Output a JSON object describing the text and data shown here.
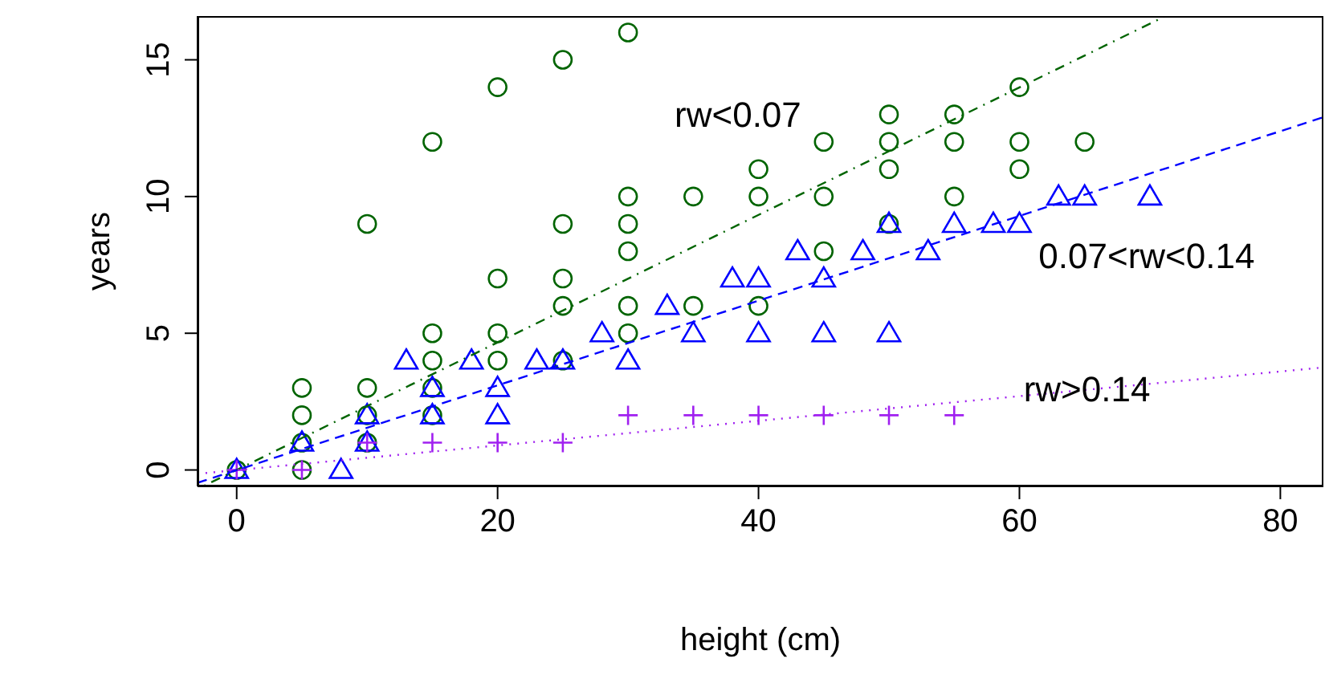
{
  "chart_data": {
    "type": "scatter",
    "xlabel": "height (cm)",
    "ylabel": "years",
    "xlim": [
      -3,
      83.3
    ],
    "ylim": [
      -0.6,
      16.6
    ],
    "xticks": [
      0,
      20,
      40,
      60,
      80
    ],
    "yticks": [
      0,
      5,
      10,
      15
    ],
    "grid": false,
    "legend": false,
    "series": [
      {
        "marker": "circle",
        "color": "#006400",
        "x": [
          0,
          5,
          5,
          5,
          5,
          10,
          10,
          10,
          10,
          15,
          15,
          15,
          15,
          15,
          20,
          20,
          20,
          20,
          25,
          25,
          25,
          25,
          25,
          30,
          30,
          30,
          30,
          30,
          30,
          35,
          35,
          40,
          40,
          40,
          45,
          45,
          45,
          50,
          50,
          50,
          50,
          55,
          55,
          55,
          60,
          60,
          60,
          65
        ],
        "values": [
          0,
          0,
          1,
          2,
          3,
          1,
          2,
          3,
          9,
          2,
          3,
          4,
          5,
          12,
          4,
          5,
          7,
          14,
          4,
          6,
          7,
          9,
          15,
          5,
          6,
          8,
          9,
          10,
          16,
          6,
          10,
          6,
          10,
          11,
          8,
          10,
          12,
          9,
          11,
          12,
          13,
          10,
          12,
          13,
          11,
          12,
          14,
          12
        ]
      },
      {
        "marker": "triangle",
        "color": "#0000ff",
        "x": [
          0,
          5,
          8,
          10,
          10,
          13,
          15,
          15,
          18,
          20,
          20,
          23,
          25,
          28,
          30,
          33,
          35,
          38,
          40,
          40,
          43,
          45,
          45,
          48,
          50,
          50,
          53,
          55,
          58,
          60,
          63,
          65,
          70
        ],
        "values": [
          0,
          1,
          0,
          1,
          2,
          4,
          2,
          3,
          4,
          2,
          3,
          4,
          4,
          5,
          4,
          6,
          5,
          7,
          5,
          7,
          8,
          5,
          7,
          8,
          5,
          9,
          8,
          9,
          9,
          9,
          10,
          10,
          10
        ]
      },
      {
        "marker": "cross",
        "color": "#a020f0",
        "x": [
          0,
          5,
          10,
          15,
          20,
          25,
          30,
          35,
          40,
          45,
          50,
          55
        ],
        "values": [
          0,
          0,
          1,
          1,
          1,
          1,
          2,
          2,
          2,
          2,
          2,
          2
        ]
      },
      {
        "type": "line",
        "line_style": "dashdot",
        "color": "#006400",
        "x": [
          -2.5,
          71.2
        ],
        "values": [
          -0.58,
          16.6
        ]
      },
      {
        "type": "line",
        "line_style": "dashed",
        "color": "#0000ff",
        "x": [
          -3,
          83.3
        ],
        "values": [
          -0.47,
          12.9
        ]
      },
      {
        "type": "line",
        "line_style": "dotted",
        "color": "#a020f0",
        "x": [
          -3,
          83.3
        ],
        "values": [
          -0.14,
          3.75
        ]
      }
    ],
    "annotations": [
      "rw<0.07",
      "0.07<rw<0.14",
      "rw>0.14"
    ]
  }
}
